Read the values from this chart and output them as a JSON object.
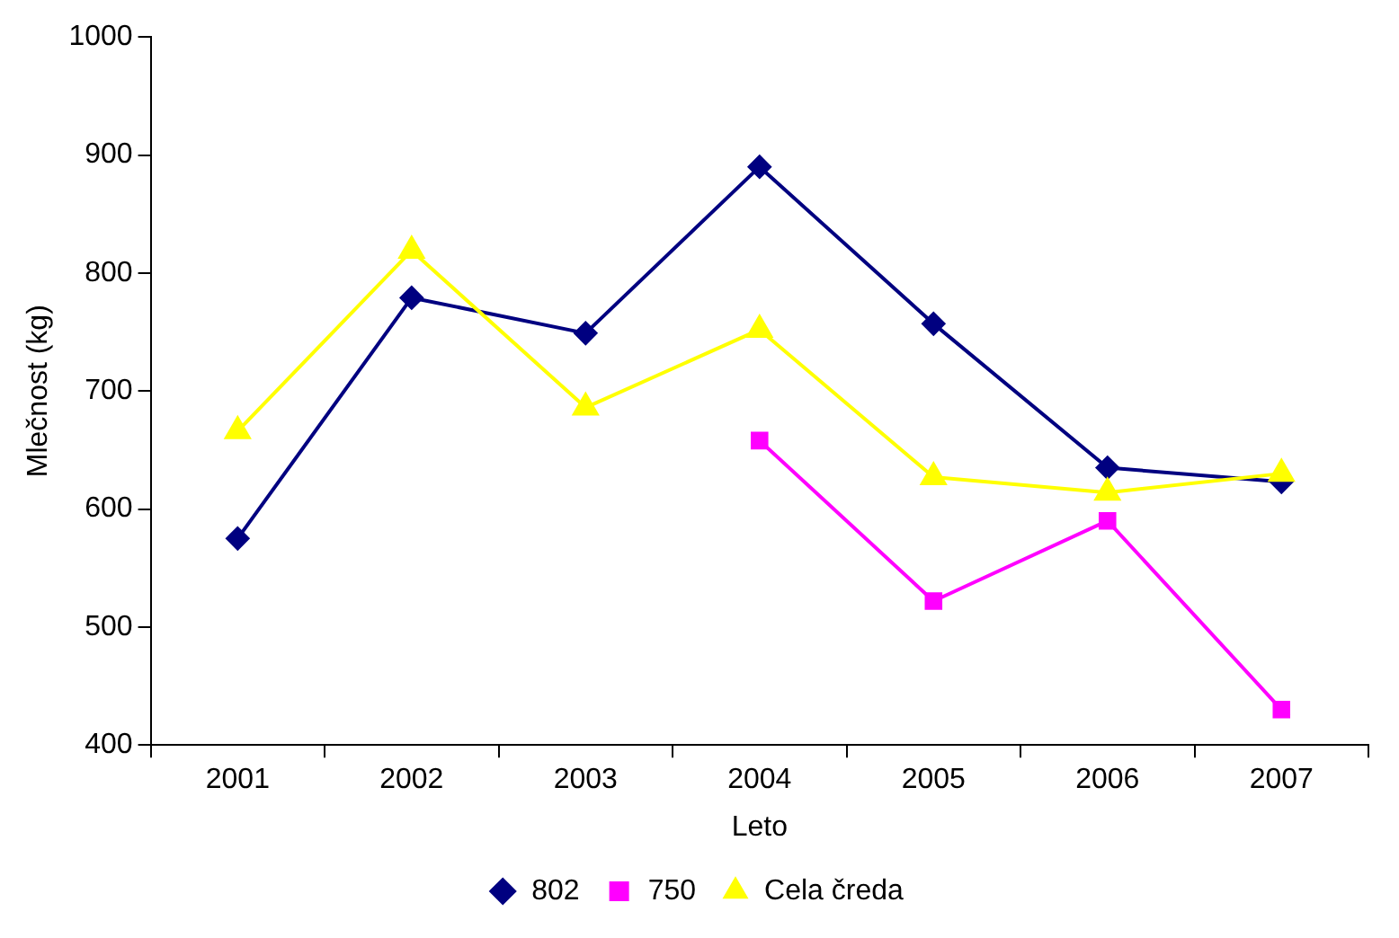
{
  "chart_data": {
    "type": "line",
    "xlabel": "Leto",
    "ylabel": "Mlečnost (kg)",
    "categories": [
      "2001",
      "2002",
      "2003",
      "2004",
      "2005",
      "2006",
      "2007"
    ],
    "series": [
      {
        "name": "802",
        "color": "#000080",
        "marker": "diamond",
        "values": [
          575,
          779,
          749,
          890,
          757,
          635,
          623
        ]
      },
      {
        "name": "750",
        "color": "#ff00ff",
        "marker": "square",
        "values": [
          null,
          null,
          null,
          658,
          522,
          590,
          430
        ]
      },
      {
        "name": "Cela čreda",
        "color": "#ffff00",
        "marker": "triangle",
        "values": [
          666,
          819,
          686,
          752,
          627,
          614,
          630
        ]
      }
    ],
    "ylim": [
      400,
      1000
    ],
    "yticks": [
      400,
      500,
      600,
      700,
      800,
      900,
      1000
    ],
    "grid": false,
    "legend": "bottom",
    "line_style": "solid"
  }
}
